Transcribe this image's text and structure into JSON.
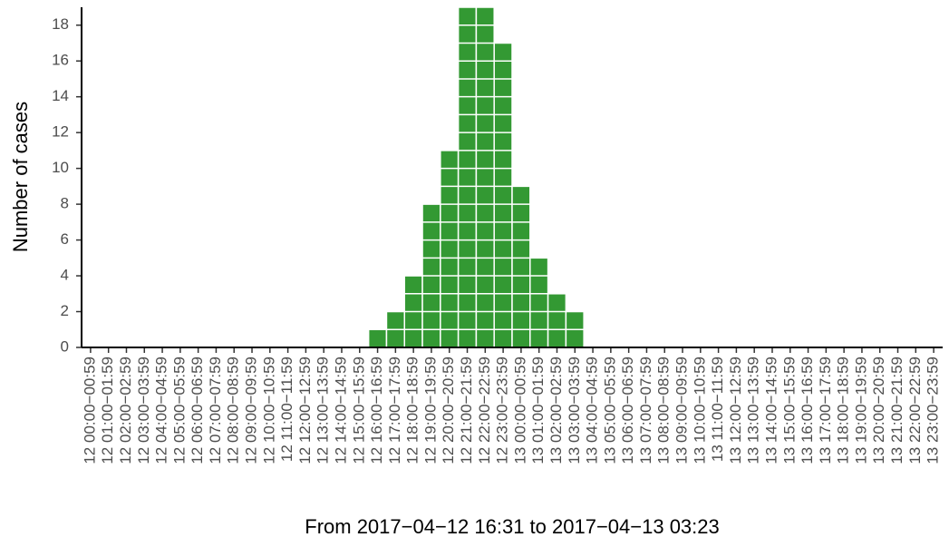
{
  "chart_data": {
    "type": "bar",
    "x_label": "From 2017−04−12 16:31 to 2017−04−13 03:23",
    "y_label": "Number of cases",
    "categories": [
      "12 00:00−00:59",
      "12 01:00−01:59",
      "12 02:00−02:59",
      "12 03:00−03:59",
      "12 04:00−04:59",
      "12 05:00−05:59",
      "12 06:00−06:59",
      "12 07:00−07:59",
      "12 08:00−08:59",
      "12 09:00−09:59",
      "12 10:00−10:59",
      "12 11:00−11:59",
      "12 12:00−12:59",
      "12 13:00−13:59",
      "12 14:00−14:59",
      "12 15:00−15:59",
      "12 16:00−16:59",
      "12 17:00−17:59",
      "12 18:00−18:59",
      "12 19:00−19:59",
      "12 20:00−20:59",
      "12 21:00−21:59",
      "12 22:00−22:59",
      "12 23:00−23:59",
      "13 00:00−00:59",
      "13 01:00−01:59",
      "13 02:00−02:59",
      "13 03:00−03:59",
      "13 04:00−04:59",
      "13 05:00−05:59",
      "13 06:00−06:59",
      "13 07:00−07:59",
      "13 08:00−08:59",
      "13 09:00−09:59",
      "13 10:00−10:59",
      "13 11:00−11:59",
      "13 12:00−12:59",
      "13 13:00−13:59",
      "13 14:00−14:59",
      "13 15:00−15:59",
      "13 16:00−16:59",
      "13 17:00−17:59",
      "13 18:00−18:59",
      "13 19:00−19:59",
      "13 20:00−20:59",
      "13 21:00−21:59",
      "13 22:00−22:59",
      "13 23:00−23:59"
    ],
    "values": [
      0,
      0,
      0,
      0,
      0,
      0,
      0,
      0,
      0,
      0,
      0,
      0,
      0,
      0,
      0,
      0,
      1,
      2,
      4,
      8,
      11,
      19,
      19,
      17,
      9,
      5,
      3,
      2,
      0,
      0,
      0,
      0,
      0,
      0,
      0,
      0,
      0,
      0,
      0,
      0,
      0,
      0,
      0,
      0,
      0,
      0,
      0,
      0
    ],
    "color": "#339933",
    "ylim": [
      0,
      19
    ],
    "yticks": [
      0,
      2,
      4,
      6,
      8,
      10,
      12,
      14,
      16,
      18
    ]
  }
}
